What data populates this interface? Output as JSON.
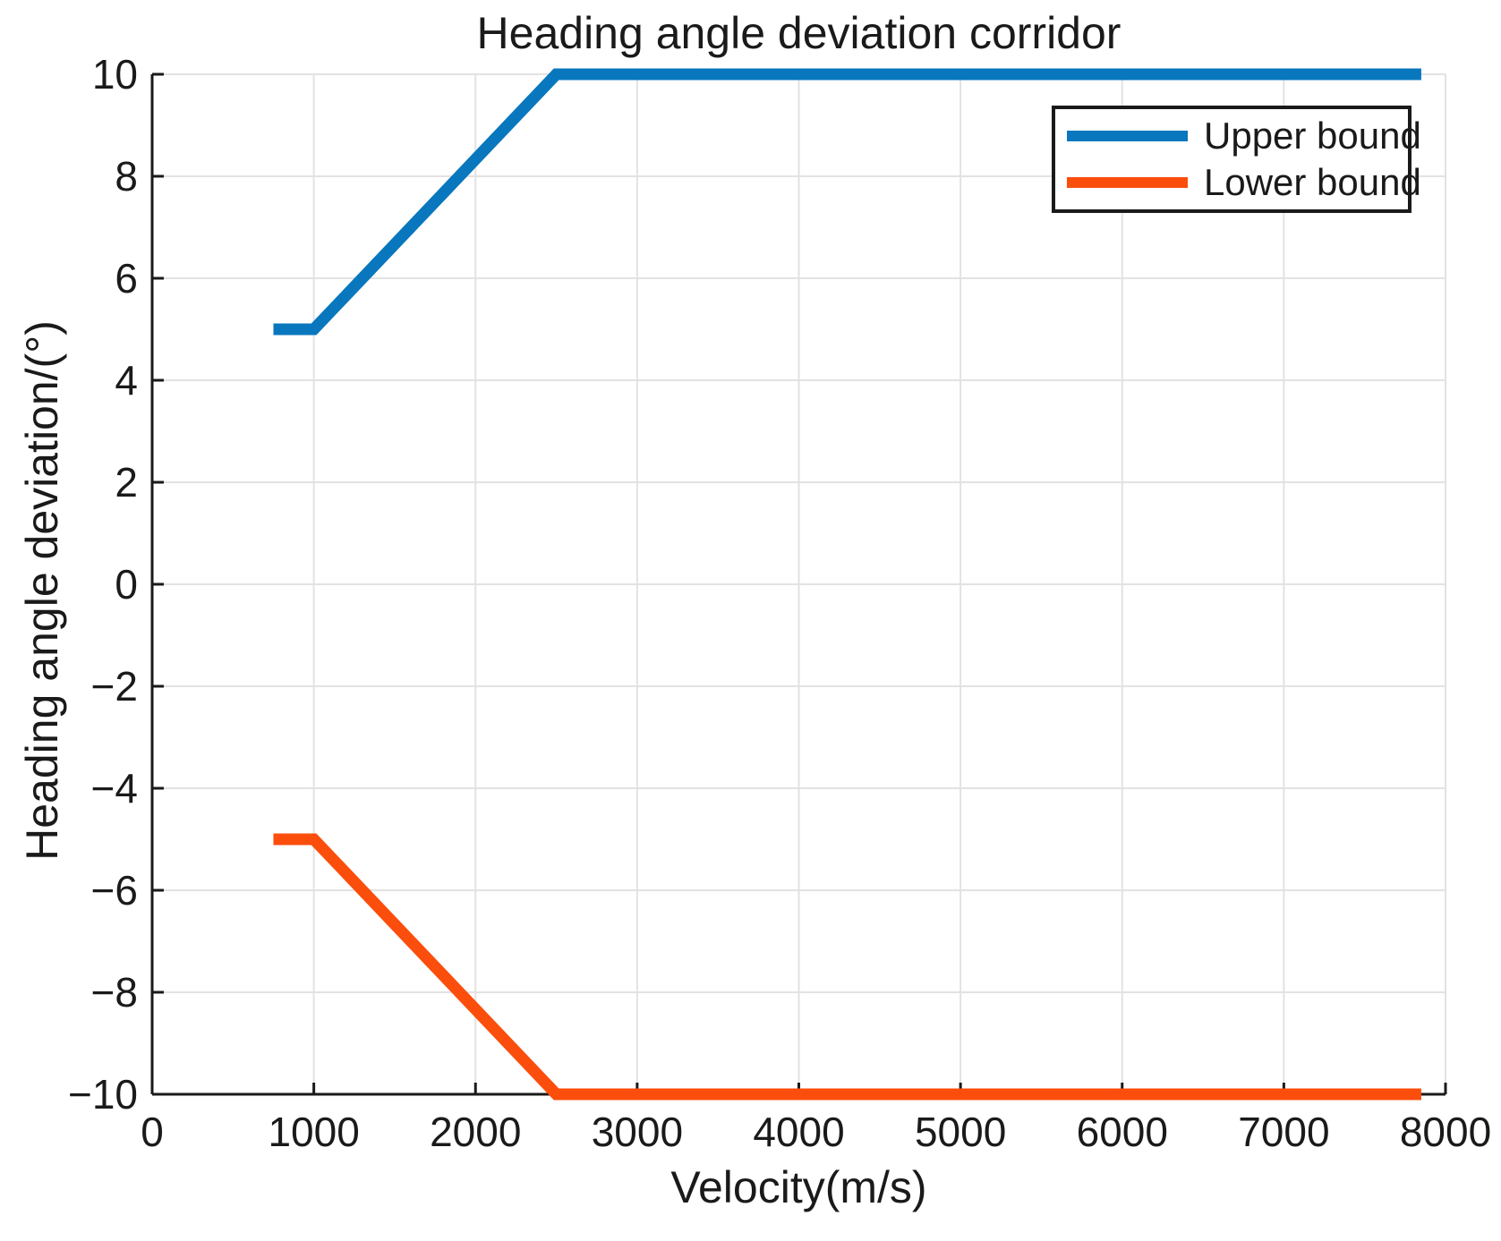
{
  "chart_data": {
    "type": "line",
    "title": "Heading angle deviation corridor",
    "xlabel": "Velocity(m/s)",
    "ylabel": "Heading angle deviation/(°)",
    "xlim": [
      0,
      8000
    ],
    "ylim": [
      -10,
      10
    ],
    "x_ticks": [
      0,
      1000,
      2000,
      3000,
      4000,
      5000,
      6000,
      7000,
      8000
    ],
    "y_ticks": [
      -10,
      -8,
      -6,
      -4,
      -2,
      0,
      2,
      4,
      6,
      8,
      10
    ],
    "grid": true,
    "legend_position": "northeast",
    "series": [
      {
        "name": "Upper bound",
        "color": "#0877BD",
        "points": [
          [
            750,
            5
          ],
          [
            1000,
            5
          ],
          [
            2500,
            10
          ],
          [
            7850,
            10
          ]
        ]
      },
      {
        "name": "Lower bound",
        "color": "#FB4E0D",
        "points": [
          [
            750,
            -5
          ],
          [
            1000,
            -5
          ],
          [
            2500,
            -10
          ],
          [
            7850,
            -10
          ]
        ]
      }
    ]
  },
  "style": {
    "grid_color": "#e2e2e2",
    "axis_color": "#1a1a1a",
    "tick_label_color": "#1a1a1a",
    "series_line_width": 13,
    "axis_line_width": 3,
    "grid_line_width": 2
  }
}
